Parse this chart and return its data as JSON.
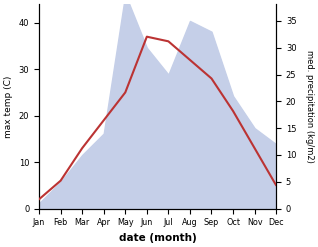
{
  "months": [
    "Jan",
    "Feb",
    "Mar",
    "Apr",
    "May",
    "Jun",
    "Jul",
    "Aug",
    "Sep",
    "Oct",
    "Nov",
    "Dec"
  ],
  "max_temp": [
    2,
    6,
    13,
    19,
    25,
    37,
    36,
    32,
    28,
    21,
    13,
    5
  ],
  "precipitation": [
    1,
    5,
    10,
    14,
    40,
    30,
    25,
    35,
    33,
    21,
    15,
    12
  ],
  "temp_color": "#bb3333",
  "precip_fill_color": "#c5cfe8",
  "temp_ylim": [
    0,
    44
  ],
  "temp_yticks": [
    0,
    10,
    20,
    30,
    40
  ],
  "precip_ylim": [
    0,
    38.1333
  ],
  "precip_yticks": [
    0,
    5,
    10,
    15,
    20,
    25,
    30,
    35
  ],
  "xlabel": "date (month)",
  "ylabel_left": "max temp (C)",
  "ylabel_right": "med. precipitation (kg/m2)",
  "background_color": "#ffffff"
}
